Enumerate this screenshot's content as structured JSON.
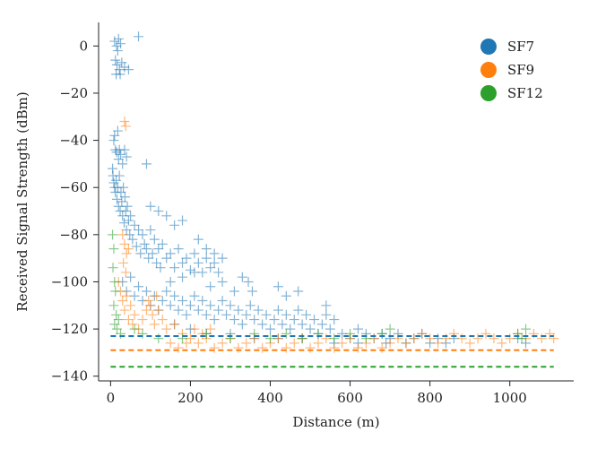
{
  "chart_data": {
    "type": "scatter",
    "title": "",
    "xlabel": "Distance (m)",
    "ylabel": "Received Signal Strength (dBm)",
    "xlim": [
      -30,
      1160
    ],
    "ylim": [
      -142,
      10
    ],
    "xticks": [
      0,
      200,
      400,
      600,
      800,
      1000
    ],
    "yticks": [
      0,
      -20,
      -40,
      -60,
      -80,
      -100,
      -120,
      -140
    ],
    "grid": false,
    "legend": "top-right",
    "marker": "plus",
    "series": [
      {
        "name": "SF7",
        "color": "#1f77b4",
        "sensitivity_dbm": -123,
        "points": [
          [
            10,
            2
          ],
          [
            15,
            0
          ],
          [
            20,
            3
          ],
          [
            25,
            1
          ],
          [
            18,
            -2
          ],
          [
            70,
            4
          ],
          [
            12,
            -6
          ],
          [
            16,
            -8
          ],
          [
            22,
            -10
          ],
          [
            28,
            -7
          ],
          [
            35,
            -9
          ],
          [
            45,
            -10
          ],
          [
            14,
            -12
          ],
          [
            24,
            -12
          ],
          [
            8,
            -40
          ],
          [
            10,
            -38
          ],
          [
            12,
            -44
          ],
          [
            15,
            -45
          ],
          [
            18,
            -36
          ],
          [
            20,
            -48
          ],
          [
            22,
            -44
          ],
          [
            25,
            -46
          ],
          [
            30,
            -50
          ],
          [
            35,
            -44
          ],
          [
            40,
            -47
          ],
          [
            90,
            -50
          ],
          [
            5,
            -52
          ],
          [
            6,
            -55
          ],
          [
            8,
            -58
          ],
          [
            10,
            -60
          ],
          [
            12,
            -62
          ],
          [
            14,
            -57
          ],
          [
            16,
            -65
          ],
          [
            18,
            -60
          ],
          [
            20,
            -68
          ],
          [
            22,
            -55
          ],
          [
            24,
            -70
          ],
          [
            26,
            -62
          ],
          [
            28,
            -66
          ],
          [
            30,
            -72
          ],
          [
            32,
            -60
          ],
          [
            34,
            -75
          ],
          [
            36,
            -64
          ],
          [
            38,
            -70
          ],
          [
            40,
            -78
          ],
          [
            42,
            -68
          ],
          [
            45,
            -74
          ],
          [
            48,
            -80
          ],
          [
            50,
            -72
          ],
          [
            55,
            -82
          ],
          [
            60,
            -76
          ],
          [
            65,
            -85
          ],
          [
            70,
            -78
          ],
          [
            75,
            -88
          ],
          [
            80,
            -80
          ],
          [
            85,
            -84
          ],
          [
            90,
            -86
          ],
          [
            95,
            -90
          ],
          [
            100,
            -78
          ],
          [
            105,
            -88
          ],
          [
            110,
            -82
          ],
          [
            115,
            -92
          ],
          [
            120,
            -86
          ],
          [
            125,
            -94
          ],
          [
            130,
            -84
          ],
          [
            140,
            -90
          ],
          [
            150,
            -88
          ],
          [
            160,
            -94
          ],
          [
            170,
            -86
          ],
          [
            180,
            -92
          ],
          [
            190,
            -90
          ],
          [
            200,
            -95
          ],
          [
            210,
            -88
          ],
          [
            220,
            -92
          ],
          [
            230,
            -96
          ],
          [
            240,
            -90
          ],
          [
            250,
            -94
          ],
          [
            260,
            -92
          ],
          [
            270,
            -96
          ],
          [
            280,
            -90
          ],
          [
            220,
            -82
          ],
          [
            240,
            -86
          ],
          [
            260,
            -88
          ],
          [
            180,
            -74
          ],
          [
            160,
            -76
          ],
          [
            140,
            -72
          ],
          [
            120,
            -70
          ],
          [
            100,
            -68
          ],
          [
            30,
            -100
          ],
          [
            40,
            -104
          ],
          [
            50,
            -98
          ],
          [
            60,
            -106
          ],
          [
            70,
            -102
          ],
          [
            80,
            -108
          ],
          [
            90,
            -104
          ],
          [
            100,
            -110
          ],
          [
            110,
            -106
          ],
          [
            120,
            -112
          ],
          [
            130,
            -108
          ],
          [
            140,
            -104
          ],
          [
            150,
            -110
          ],
          [
            160,
            -106
          ],
          [
            170,
            -112
          ],
          [
            180,
            -108
          ],
          [
            190,
            -114
          ],
          [
            200,
            -110
          ],
          [
            210,
            -106
          ],
          [
            220,
            -112
          ],
          [
            230,
            -108
          ],
          [
            240,
            -114
          ],
          [
            250,
            -110
          ],
          [
            260,
            -116
          ],
          [
            270,
            -112
          ],
          [
            280,
            -108
          ],
          [
            290,
            -114
          ],
          [
            300,
            -110
          ],
          [
            310,
            -116
          ],
          [
            320,
            -112
          ],
          [
            330,
            -118
          ],
          [
            340,
            -114
          ],
          [
            350,
            -110
          ],
          [
            360,
            -116
          ],
          [
            370,
            -112
          ],
          [
            380,
            -118
          ],
          [
            390,
            -114
          ],
          [
            400,
            -120
          ],
          [
            410,
            -116
          ],
          [
            420,
            -112
          ],
          [
            430,
            -118
          ],
          [
            440,
            -114
          ],
          [
            450,
            -120
          ],
          [
            460,
            -116
          ],
          [
            470,
            -112
          ],
          [
            480,
            -118
          ],
          [
            490,
            -114
          ],
          [
            500,
            -120
          ],
          [
            510,
            -116
          ],
          [
            520,
            -122
          ],
          [
            530,
            -118
          ],
          [
            540,
            -114
          ],
          [
            550,
            -120
          ],
          [
            560,
            -116
          ],
          [
            580,
            -122
          ],
          [
            600,
            -124
          ],
          [
            620,
            -120
          ],
          [
            640,
            -122
          ],
          [
            660,
            -124
          ],
          [
            680,
            -122
          ],
          [
            700,
            -124
          ],
          [
            720,
            -122
          ],
          [
            740,
            -126
          ],
          [
            760,
            -124
          ],
          [
            780,
            -122
          ],
          [
            800,
            -126
          ],
          [
            820,
            -124
          ],
          [
            840,
            -126
          ],
          [
            860,
            -124
          ],
          [
            1020,
            -124
          ],
          [
            1040,
            -126
          ],
          [
            330,
            -98
          ],
          [
            345,
            -100
          ],
          [
            355,
            -104
          ],
          [
            420,
            -102
          ],
          [
            440,
            -106
          ],
          [
            470,
            -104
          ],
          [
            540,
            -110
          ],
          [
            150,
            -100
          ],
          [
            180,
            -98
          ],
          [
            210,
            -96
          ],
          [
            250,
            -102
          ],
          [
            280,
            -100
          ],
          [
            310,
            -104
          ],
          [
            160,
            -118
          ],
          [
            200,
            -120
          ],
          [
            240,
            -122
          ],
          [
            300,
            -122
          ],
          [
            360,
            -124
          ],
          [
            420,
            -124
          ],
          [
            480,
            -124
          ],
          [
            560,
            -126
          ],
          [
            620,
            -126
          ],
          [
            690,
            -126
          ]
        ]
      },
      {
        "name": "SF9",
        "color": "#ff7f0e",
        "sensitivity_dbm": -129,
        "points": [
          [
            35,
            -32
          ],
          [
            38,
            -34
          ],
          [
            30,
            -80
          ],
          [
            35,
            -84
          ],
          [
            40,
            -88
          ],
          [
            32,
            -92
          ],
          [
            45,
            -86
          ],
          [
            38,
            -96
          ],
          [
            20,
            -100
          ],
          [
            25,
            -104
          ],
          [
            30,
            -108
          ],
          [
            35,
            -112
          ],
          [
            40,
            -106
          ],
          [
            45,
            -116
          ],
          [
            50,
            -110
          ],
          [
            55,
            -118
          ],
          [
            60,
            -114
          ],
          [
            70,
            -120
          ],
          [
            80,
            -116
          ],
          [
            90,
            -112
          ],
          [
            95,
            -108
          ],
          [
            100,
            -110
          ],
          [
            105,
            -114
          ],
          [
            110,
            -118
          ],
          [
            115,
            -106
          ],
          [
            120,
            -112
          ],
          [
            130,
            -116
          ],
          [
            140,
            -120
          ],
          [
            160,
            -118
          ],
          [
            180,
            -122
          ],
          [
            200,
            -124
          ],
          [
            220,
            -126
          ],
          [
            240,
            -124
          ],
          [
            260,
            -128
          ],
          [
            280,
            -126
          ],
          [
            300,
            -124
          ],
          [
            320,
            -128
          ],
          [
            340,
            -126
          ],
          [
            360,
            -124
          ],
          [
            380,
            -128
          ],
          [
            400,
            -126
          ],
          [
            420,
            -124
          ],
          [
            440,
            -128
          ],
          [
            460,
            -126
          ],
          [
            480,
            -124
          ],
          [
            500,
            -128
          ],
          [
            520,
            -126
          ],
          [
            540,
            -124
          ],
          [
            560,
            -128
          ],
          [
            580,
            -126
          ],
          [
            600,
            -124
          ],
          [
            620,
            -128
          ],
          [
            640,
            -126
          ],
          [
            660,
            -124
          ],
          [
            680,
            -128
          ],
          [
            700,
            -126
          ],
          [
            720,
            -124
          ],
          [
            740,
            -126
          ],
          [
            760,
            -124
          ],
          [
            780,
            -122
          ],
          [
            800,
            -124
          ],
          [
            820,
            -126
          ],
          [
            840,
            -124
          ],
          [
            860,
            -122
          ],
          [
            880,
            -124
          ],
          [
            900,
            -126
          ],
          [
            920,
            -124
          ],
          [
            940,
            -122
          ],
          [
            960,
            -124
          ],
          [
            980,
            -126
          ],
          [
            1000,
            -124
          ],
          [
            1020,
            -122
          ],
          [
            1040,
            -124
          ],
          [
            1060,
            -122
          ],
          [
            1080,
            -124
          ],
          [
            1100,
            -122
          ],
          [
            1110,
            -124
          ],
          [
            150,
            -126
          ],
          [
            170,
            -128
          ],
          [
            190,
            -126
          ],
          [
            210,
            -120
          ],
          [
            230,
            -122
          ],
          [
            250,
            -120
          ]
        ]
      },
      {
        "name": "SF12",
        "color": "#2ca02c",
        "sensitivity_dbm": -136,
        "points": [
          [
            5,
            -80
          ],
          [
            8,
            -86
          ],
          [
            6,
            -94
          ],
          [
            10,
            -100
          ],
          [
            12,
            -104
          ],
          [
            8,
            -110
          ],
          [
            14,
            -114
          ],
          [
            10,
            -118
          ],
          [
            16,
            -120
          ],
          [
            20,
            -116
          ],
          [
            25,
            -122
          ],
          [
            60,
            -120
          ],
          [
            80,
            -122
          ],
          [
            120,
            -124
          ],
          [
            180,
            -124
          ],
          [
            240,
            -122
          ],
          [
            300,
            -124
          ],
          [
            360,
            -122
          ],
          [
            400,
            -124
          ],
          [
            440,
            -122
          ],
          [
            480,
            -124
          ],
          [
            520,
            -122
          ],
          [
            560,
            -124
          ],
          [
            600,
            -122
          ],
          [
            640,
            -124
          ],
          [
            680,
            -122
          ],
          [
            700,
            -120
          ],
          [
            1020,
            -122
          ],
          [
            1030,
            -124
          ],
          [
            1040,
            -120
          ]
        ]
      }
    ]
  }
}
